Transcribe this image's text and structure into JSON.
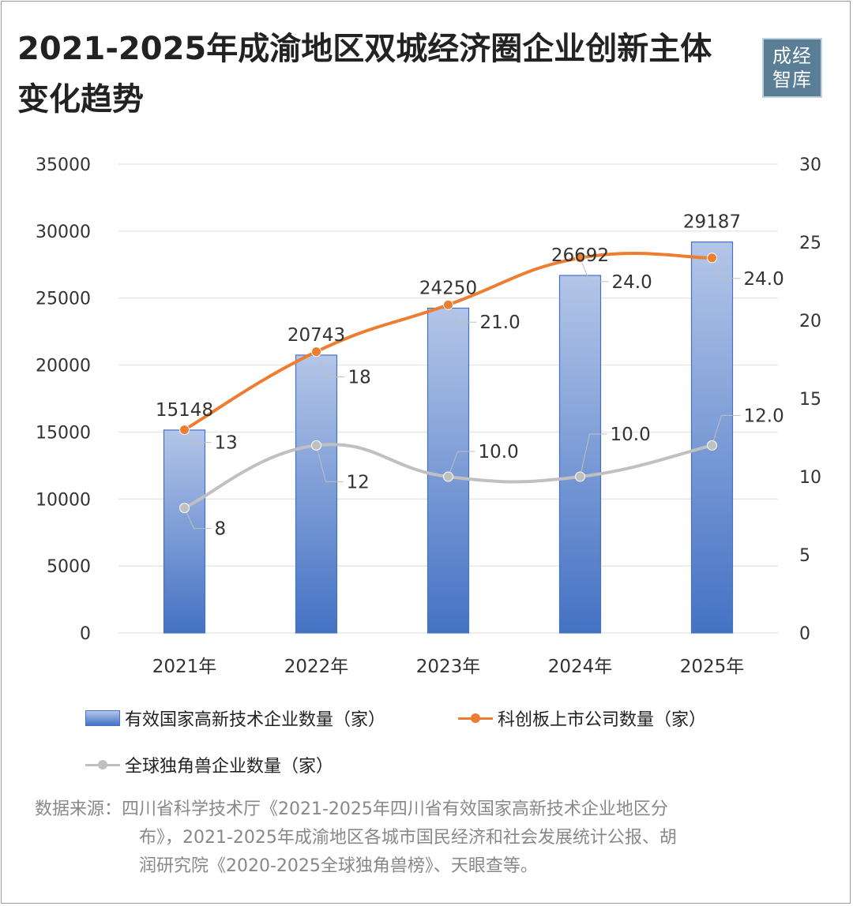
{
  "title_line1": "2021-2025年成渝地区双城经济圈企业创新主体",
  "title_line2": "变化趋势",
  "logo_text": "成经智库",
  "legend": {
    "bar": "有效国家高新技术企业数量（家）",
    "orange": "科创板上市公司数量（家）",
    "gray": "全球独角兽企业数量（家）"
  },
  "source": {
    "line1": "数据来源：四川省科学技术厅《2021-2025年四川省有效国家高新技术企业地区分",
    "line2": "布》，2021-2025年成渝地区各城市国民经济和社会发展统计公报、胡",
    "line3": "润研究院《2020-2025全球独角兽榜》、天眼查等。"
  },
  "colors": {
    "bar_top": "#b4c6e8",
    "bar_bottom": "#4472c4",
    "orange": "#ed7d31",
    "gray": "#c0c0c0",
    "grid": "#e3e3e3"
  },
  "chart_data": {
    "type": "bar",
    "categories": [
      "2021年",
      "2022年",
      "2023年",
      "2024年",
      "2025年"
    ],
    "series": [
      {
        "name": "有效国家高新技术企业数量（家）",
        "type": "bar",
        "axis": "left",
        "values": [
          15148,
          20743,
          24250,
          26692,
          29187
        ],
        "labels": [
          "15148",
          "20743",
          "24250",
          "26692",
          "29187"
        ]
      },
      {
        "name": "科创板上市公司数量（家）",
        "type": "line",
        "axis": "right",
        "values": [
          13,
          18,
          21,
          24,
          24
        ],
        "labels": [
          "13",
          "18",
          "21.0",
          "24.0",
          "24.0"
        ]
      },
      {
        "name": "全球独角兽企业数量（家）",
        "type": "line",
        "axis": "right",
        "smooth": true,
        "values": [
          8,
          12,
          10,
          10,
          12
        ],
        "labels": [
          "8",
          "12",
          "10.0",
          "10.0",
          "12.0"
        ]
      }
    ],
    "y_left": {
      "min": 0,
      "max": 35000,
      "ticks": [
        "0",
        "5000",
        "10000",
        "15000",
        "20000",
        "25000",
        "30000",
        "35000"
      ]
    },
    "y_right": {
      "min": 0,
      "max": 30,
      "ticks": [
        "0",
        "5",
        "10",
        "15",
        "20",
        "25",
        "30"
      ]
    },
    "grid": true,
    "legend_position": "bottom"
  }
}
